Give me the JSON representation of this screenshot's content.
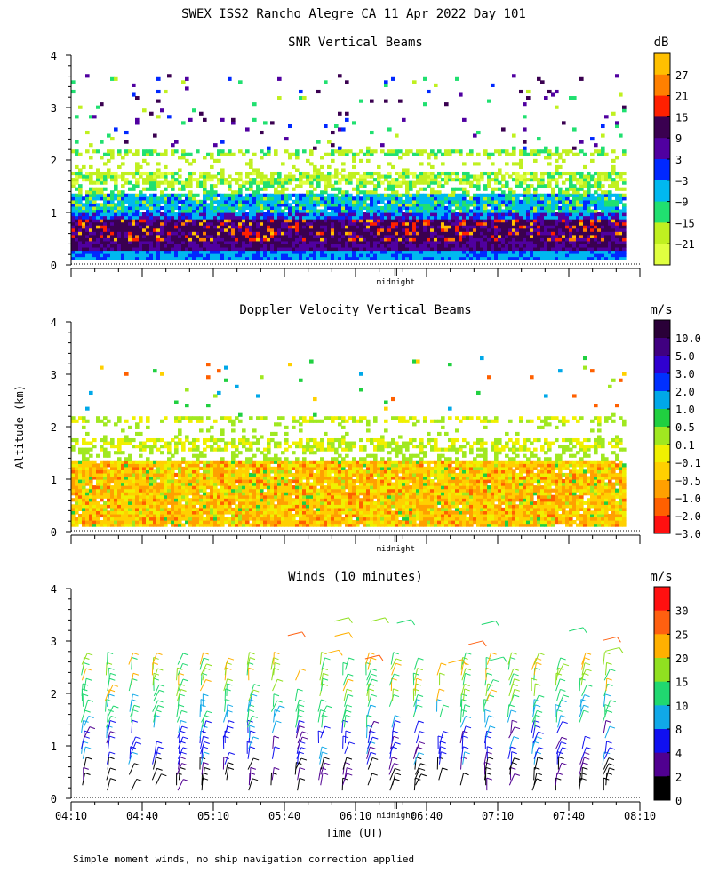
{
  "figure": {
    "title": "SWEX ISS2 Rancho Alegre CA  11 Apr 2022 Day 101",
    "ylabel": "Altitude (km)",
    "xlabel": "Time (UT)",
    "footnote": "Simple moment winds, no ship navigation correction applied",
    "midnight_label": "midnight",
    "x_ticks": [
      "04:10",
      "04:40",
      "05:10",
      "05:40",
      "06:10",
      "06:40",
      "07:10",
      "07:40",
      "08:10"
    ],
    "y_ticks": [
      "0",
      "1",
      "2",
      "3",
      "4"
    ]
  },
  "chart_data": [
    {
      "type": "heatmap",
      "title": "SNR Vertical Beams",
      "unit": "dB",
      "xlim": [
        "04:10",
        "08:10"
      ],
      "ylim": [
        0,
        4
      ],
      "colorbar": {
        "labels": [
          "27",
          "21",
          "15",
          "9",
          "3",
          "−3",
          "−9",
          "−15",
          "−21"
        ],
        "colors": [
          "#ffc000",
          "#ff8000",
          "#ff2000",
          "#3a0050",
          "#5000a0",
          "#0028ff",
          "#00b8f0",
          "#20e070",
          "#c0f020",
          "#e0ff40"
        ]
      },
      "layers": [
        {
          "name": "strong",
          "alt_range_km": [
            0.3,
            0.9
          ]
        },
        {
          "name": "moderate",
          "alt_range_km": [
            0.1,
            1.35
          ]
        },
        {
          "name": "weak_band",
          "alt_range_km": [
            1.5,
            2.2
          ]
        },
        {
          "name": "sparse_echoes",
          "alt_range_km": [
            2.2,
            3.5
          ]
        }
      ]
    },
    {
      "type": "heatmap",
      "title": "Doppler Velocity Vertical Beams",
      "unit": "m/s",
      "xlim": [
        "04:10",
        "08:10"
      ],
      "ylim": [
        0,
        4
      ],
      "colorbar": {
        "labels": [
          "10.0",
          "5.0",
          "3.0",
          "2.0",
          "1.0",
          "0.5",
          "0.1",
          "−0.1",
          "−0.5",
          "−1.0",
          "−2.0",
          "−3.0"
        ],
        "colors": [
          "#2a0038",
          "#400080",
          "#3000d0",
          "#0030ff",
          "#00a8e8",
          "#20d040",
          "#a0e820",
          "#f0f000",
          "#ffd000",
          "#ffa000",
          "#ff6000",
          "#ff1010"
        ]
      },
      "layers": [
        {
          "name": "main",
          "alt_range_km": [
            0.1,
            1.35
          ]
        },
        {
          "name": "band",
          "alt_range_km": [
            1.5,
            2.2
          ]
        },
        {
          "name": "sparse",
          "alt_range_km": [
            2.2,
            3.3
          ]
        }
      ]
    },
    {
      "type": "wind_barbs",
      "title": "Winds (10 minutes)",
      "unit": "m/s",
      "xlim": [
        "04:10",
        "08:10"
      ],
      "ylim": [
        0,
        4
      ],
      "interval_minutes": 10,
      "colorbar": {
        "labels": [
          "30",
          "25",
          "20",
          "15",
          "10",
          "8",
          "4",
          "2",
          "0"
        ],
        "colors": [
          "#ff1010",
          "#ff6010",
          "#ffb000",
          "#90e020",
          "#20d870",
          "#10a8e8",
          "#1010f0",
          "#500090",
          "#000000"
        ]
      }
    }
  ]
}
